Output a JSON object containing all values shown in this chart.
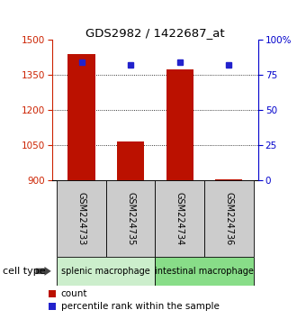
{
  "title": "GDS2982 / 1422687_at",
  "samples": [
    "GSM224733",
    "GSM224735",
    "GSM224734",
    "GSM224736"
  ],
  "counts": [
    1440,
    1065,
    1375,
    905
  ],
  "percentiles": [
    84,
    82,
    84,
    82
  ],
  "ylim_left": [
    900,
    1500
  ],
  "ylim_right": [
    0,
    100
  ],
  "yticks_left": [
    900,
    1050,
    1200,
    1350,
    1500
  ],
  "yticks_right": [
    0,
    25,
    50,
    75,
    100
  ],
  "ytick_labels_right": [
    "0",
    "25",
    "50",
    "75",
    "100%"
  ],
  "bar_color": "#bb1100",
  "dot_color": "#2222cc",
  "groups": [
    {
      "label": "splenic macrophage",
      "samples": [
        0,
        1
      ],
      "color": "#cceecc"
    },
    {
      "label": "intestinal macrophage",
      "samples": [
        2,
        3
      ],
      "color": "#88dd88"
    }
  ],
  "group_label": "cell type",
  "legend_count": "count",
  "legend_percentile": "percentile rank within the sample",
  "tick_color_left": "#cc2200",
  "tick_color_right": "#0000cc",
  "sample_box_color": "#cccccc"
}
